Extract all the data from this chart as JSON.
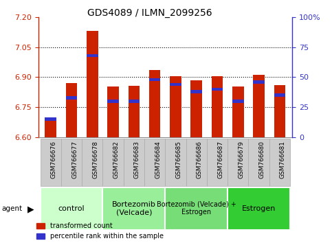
{
  "title": "GDS4089 / ILMN_2099256",
  "samples": [
    "GSM766676",
    "GSM766677",
    "GSM766678",
    "GSM766682",
    "GSM766683",
    "GSM766684",
    "GSM766685",
    "GSM766686",
    "GSM766687",
    "GSM766679",
    "GSM766680",
    "GSM766681"
  ],
  "transformed_counts": [
    6.7,
    6.87,
    7.13,
    6.855,
    6.858,
    6.935,
    6.905,
    6.885,
    6.905,
    6.855,
    6.91,
    6.86
  ],
  "percentile_ranks": [
    15,
    33,
    68,
    30,
    30,
    48,
    44,
    38,
    40,
    30,
    46,
    35
  ],
  "y_min": 6.6,
  "y_max": 7.2,
  "y_ticks": [
    6.6,
    6.75,
    6.9,
    7.05,
    7.2
  ],
  "pct_ticks": [
    0,
    25,
    50,
    75,
    100
  ],
  "groups": [
    {
      "label": "control",
      "start": 0,
      "end": 3,
      "color": "#ccffcc",
      "fontsize": 8
    },
    {
      "label": "Bortezomib\n(Velcade)",
      "start": 3,
      "end": 6,
      "color": "#99ee99",
      "fontsize": 8
    },
    {
      "label": "Bortezomib (Velcade) +\nEstrogen",
      "start": 6,
      "end": 9,
      "color": "#77dd77",
      "fontsize": 7
    },
    {
      "label": "Estrogen",
      "start": 9,
      "end": 12,
      "color": "#33cc33",
      "fontsize": 8
    }
  ],
  "bar_color": "#cc2200",
  "blue_color": "#3333cc",
  "bar_width": 0.55,
  "blue_bar_height": 0.016,
  "tick_bg_color": "#cccccc",
  "tick_border_color": "#aaaaaa",
  "grid_color": "black",
  "legend_items": [
    {
      "label": "transformed count",
      "color": "#cc2200"
    },
    {
      "label": "percentile rank within the sample",
      "color": "#3333cc"
    }
  ]
}
